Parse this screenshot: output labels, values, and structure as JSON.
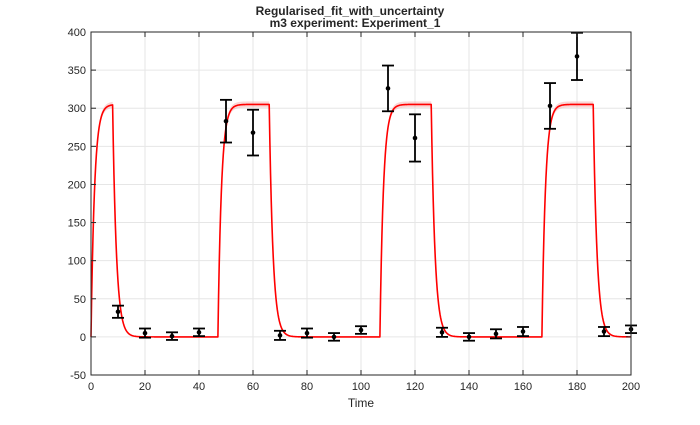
{
  "chart_data": {
    "type": "line",
    "title": "Regularised_fit_with_uncertainty",
    "subtitle": "m3 experiment: Experiment_1",
    "xlabel": "Time",
    "ylabel": "",
    "xlim": [
      0,
      200
    ],
    "ylim": [
      -50,
      400
    ],
    "x_ticks": [
      0,
      20,
      40,
      60,
      80,
      100,
      120,
      140,
      160,
      180,
      200
    ],
    "y_ticks": [
      -50,
      0,
      50,
      100,
      150,
      200,
      250,
      300,
      350,
      400
    ],
    "grid": true,
    "fit": {
      "color": "#ff0000",
      "high_level": 305,
      "low_level": 0,
      "uncertainty_band": 4,
      "on_intervals": [
        [
          0,
          8
        ],
        [
          47,
          66
        ],
        [
          107,
          126
        ],
        [
          167,
          186
        ]
      ],
      "rise_tau": 1.3,
      "fall_tau": 1.4
    },
    "series": [
      {
        "type": "errorbar",
        "color": "#000000",
        "x": [
          10,
          20,
          30,
          40,
          50,
          60,
          70,
          80,
          90,
          100,
          110,
          120,
          130,
          140,
          150,
          160,
          170,
          180,
          190,
          200
        ],
        "y": [
          33,
          5,
          1,
          6,
          283,
          268,
          2,
          5,
          0,
          9,
          326,
          261,
          6,
          0,
          4,
          7,
          303,
          368,
          7,
          10
        ],
        "err": [
          8,
          6,
          5,
          5,
          28,
          30,
          6,
          6,
          5,
          5,
          30,
          31,
          6,
          5,
          6,
          6,
          30,
          31,
          6,
          5
        ]
      }
    ]
  }
}
